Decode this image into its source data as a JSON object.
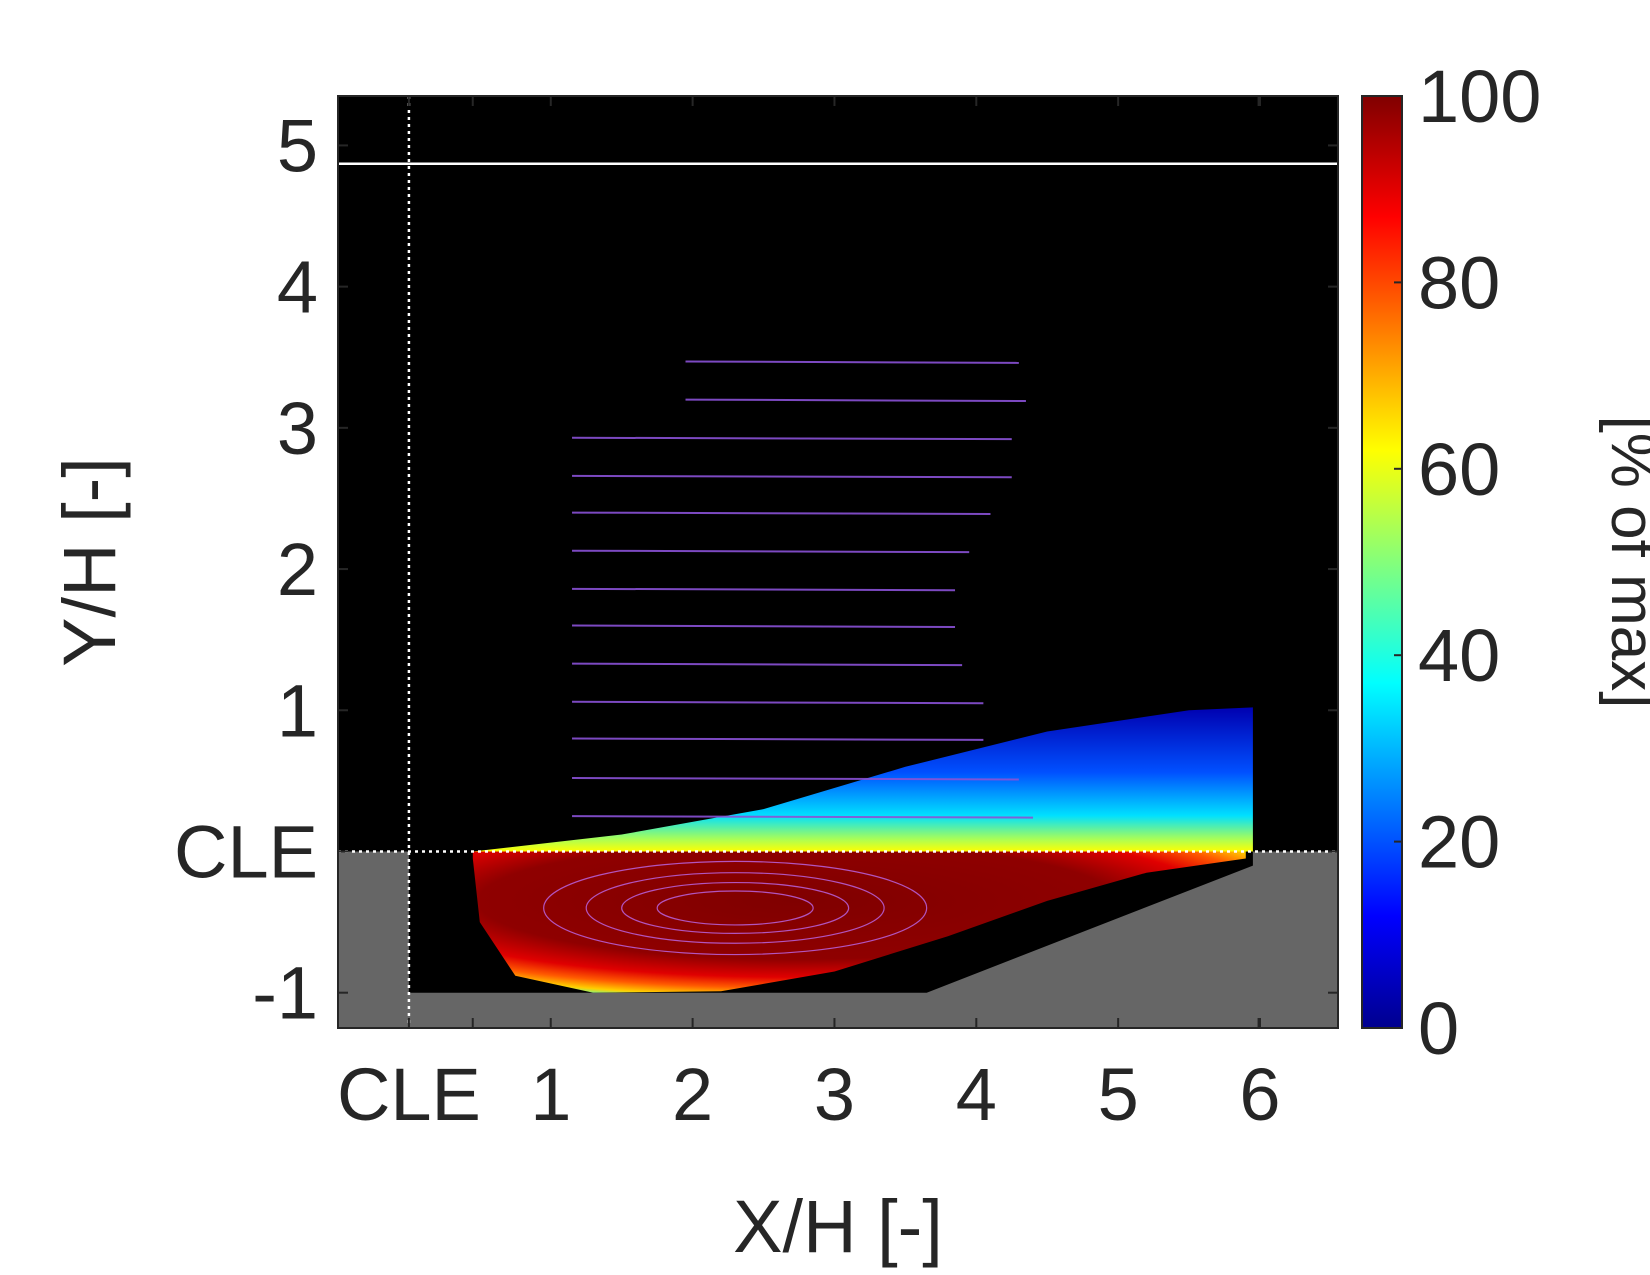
{
  "chart_data": {
    "type": "heatmap",
    "title": "",
    "xlabel": "X/H [-]",
    "ylabel": "Y/H [-]",
    "xlim": [
      -0.5,
      6.55
    ],
    "ylim": [
      -1.25,
      5.35
    ],
    "x_ticks": [
      {
        "value": 0,
        "label": "CLE"
      },
      {
        "value": 1,
        "label": "1"
      },
      {
        "value": 2,
        "label": "2"
      },
      {
        "value": 3,
        "label": "3"
      },
      {
        "value": 4,
        "label": "4"
      },
      {
        "value": 5,
        "label": "5"
      },
      {
        "value": 6,
        "label": "6"
      }
    ],
    "x_minor_ticks": [
      0.45,
      5.99
    ],
    "y_ticks": [
      {
        "value": -1,
        "label": "-1"
      },
      {
        "value": 0,
        "label": "CLE"
      },
      {
        "value": 1,
        "label": "1"
      },
      {
        "value": 2,
        "label": "2"
      },
      {
        "value": 3,
        "label": "3"
      },
      {
        "value": 4,
        "label": "4"
      },
      {
        "value": 5,
        "label": "5"
      }
    ],
    "colorbar": {
      "label": "[% of max]",
      "range": [
        0,
        100
      ],
      "ticks": [
        {
          "value": 0,
          "label": "0"
        },
        {
          "value": 20,
          "label": "20"
        },
        {
          "value": 40,
          "label": "40"
        },
        {
          "value": 60,
          "label": "60"
        },
        {
          "value": 80,
          "label": "80"
        },
        {
          "value": 100,
          "label": "100"
        }
      ],
      "colormap": "jet"
    },
    "reference_lines": [
      {
        "orientation": "horizontal",
        "value": 0,
        "style": "dotted",
        "color": "#ffffff"
      },
      {
        "orientation": "vertical",
        "value": 0,
        "style": "dotted",
        "color": "#ffffff"
      },
      {
        "orientation": "horizontal",
        "value": 4.87,
        "style": "solid",
        "color": "#ffffff"
      }
    ],
    "background_color": "#000000",
    "wall_color": "#666666",
    "wall_profile": [
      [
        0,
        0
      ],
      [
        0,
        -1
      ],
      [
        3.65,
        -1
      ],
      [
        5.95,
        -0.1
      ],
      [
        5.95,
        0
      ],
      [
        6.55,
        0
      ]
    ],
    "shear_layer": {
      "upper_edge": [
        [
          0.45,
          0
        ],
        [
          1.5,
          0.12
        ],
        [
          2.5,
          0.3
        ],
        [
          3.5,
          0.6
        ],
        [
          4.5,
          0.85
        ],
        [
          5.5,
          1.0
        ],
        [
          5.95,
          1.02
        ]
      ],
      "end_x": 5.95
    },
    "recirculation_zone": {
      "boundary": [
        [
          0.45,
          -0.05
        ],
        [
          0.5,
          -0.5
        ],
        [
          0.75,
          -0.88
        ],
        [
          1.3,
          -1.0
        ],
        [
          2.2,
          -0.99
        ],
        [
          3.0,
          -0.85
        ],
        [
          3.8,
          -0.6
        ],
        [
          4.5,
          -0.35
        ],
        [
          5.2,
          -0.15
        ],
        [
          5.9,
          -0.05
        ]
      ],
      "vortex_center": [
        2.2,
        -0.4
      ],
      "peak_value": 100
    },
    "streamlines_y": [
      3.47,
      3.2,
      2.93,
      2.66,
      2.4,
      2.13,
      1.86,
      1.6,
      1.33,
      1.06,
      0.8,
      0.52,
      0.25
    ],
    "streamlines_x_start": [
      1.95,
      1.95,
      1.15,
      1.15,
      1.15,
      1.15,
      1.15,
      1.15,
      1.15,
      1.15,
      1.15,
      1.15,
      1.15
    ],
    "streamlines_x_end": [
      4.3,
      4.35,
      4.25,
      4.25,
      4.1,
      3.95,
      3.85,
      3.85,
      3.9,
      4.05,
      4.05,
      4.3,
      4.4
    ],
    "streamline_color": "#8a52d6"
  }
}
